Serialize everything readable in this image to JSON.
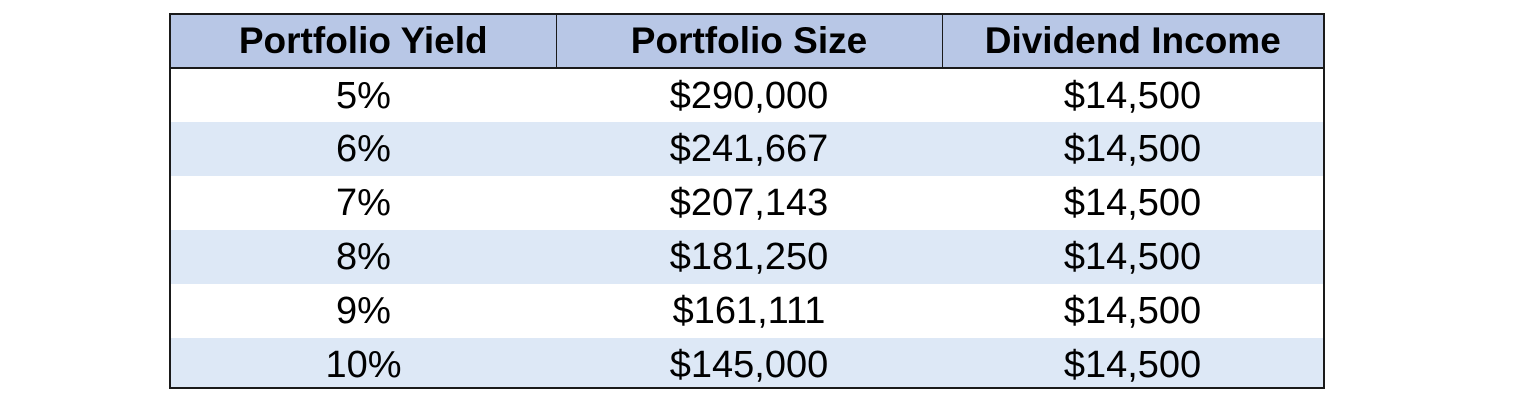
{
  "chart_data": {
    "type": "table",
    "columns": [
      "Portfolio Yield",
      "Portfolio Size",
      "Dividend Income"
    ],
    "rows": [
      [
        "5%",
        "$290,000",
        "$14,500"
      ],
      [
        "6%",
        "$241,667",
        "$14,500"
      ],
      [
        "7%",
        "$207,143",
        "$14,500"
      ],
      [
        "8%",
        "$181,250",
        "$14,500"
      ],
      [
        "9%",
        "$161,111",
        "$14,500"
      ],
      [
        "10%",
        "$145,000",
        "$14,500"
      ]
    ]
  },
  "colors": {
    "header_bg": "#b8c7e6",
    "row_alt_bg": "#dde8f6",
    "row_bg": "#ffffff",
    "border": "#1a1a1a"
  }
}
